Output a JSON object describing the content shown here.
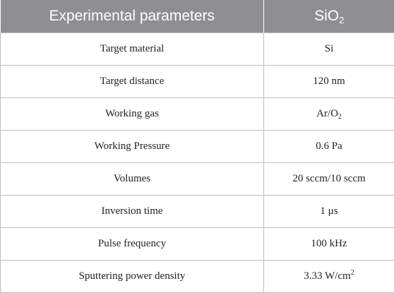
{
  "table": {
    "headers": [
      {
        "text": "Experimental parameters"
      },
      {
        "text": "SiO",
        "sub": "2"
      }
    ],
    "rows": [
      {
        "param": {
          "text": "Target material"
        },
        "value": {
          "text": "Si"
        }
      },
      {
        "param": {
          "text": "Target distance"
        },
        "value": {
          "text": "120 nm"
        }
      },
      {
        "param": {
          "text": "Working gas"
        },
        "value": {
          "text": "Ar/O",
          "sub": "2"
        }
      },
      {
        "param": {
          "text": "Working Pressure"
        },
        "value": {
          "text": "0.6 Pa"
        }
      },
      {
        "param": {
          "text": "Volumes"
        },
        "value": {
          "text": "20 sccm/10 sccm"
        }
      },
      {
        "param": {
          "text": "Inversion time"
        },
        "value": {
          "text": "1 μs"
        }
      },
      {
        "param": {
          "text": "Pulse frequency"
        },
        "value": {
          "text": "100 kHz"
        }
      },
      {
        "param": {
          "text": "Sputtering power density"
        },
        "value": {
          "text": "3.33 W/cm",
          "sup": "2"
        }
      }
    ]
  }
}
